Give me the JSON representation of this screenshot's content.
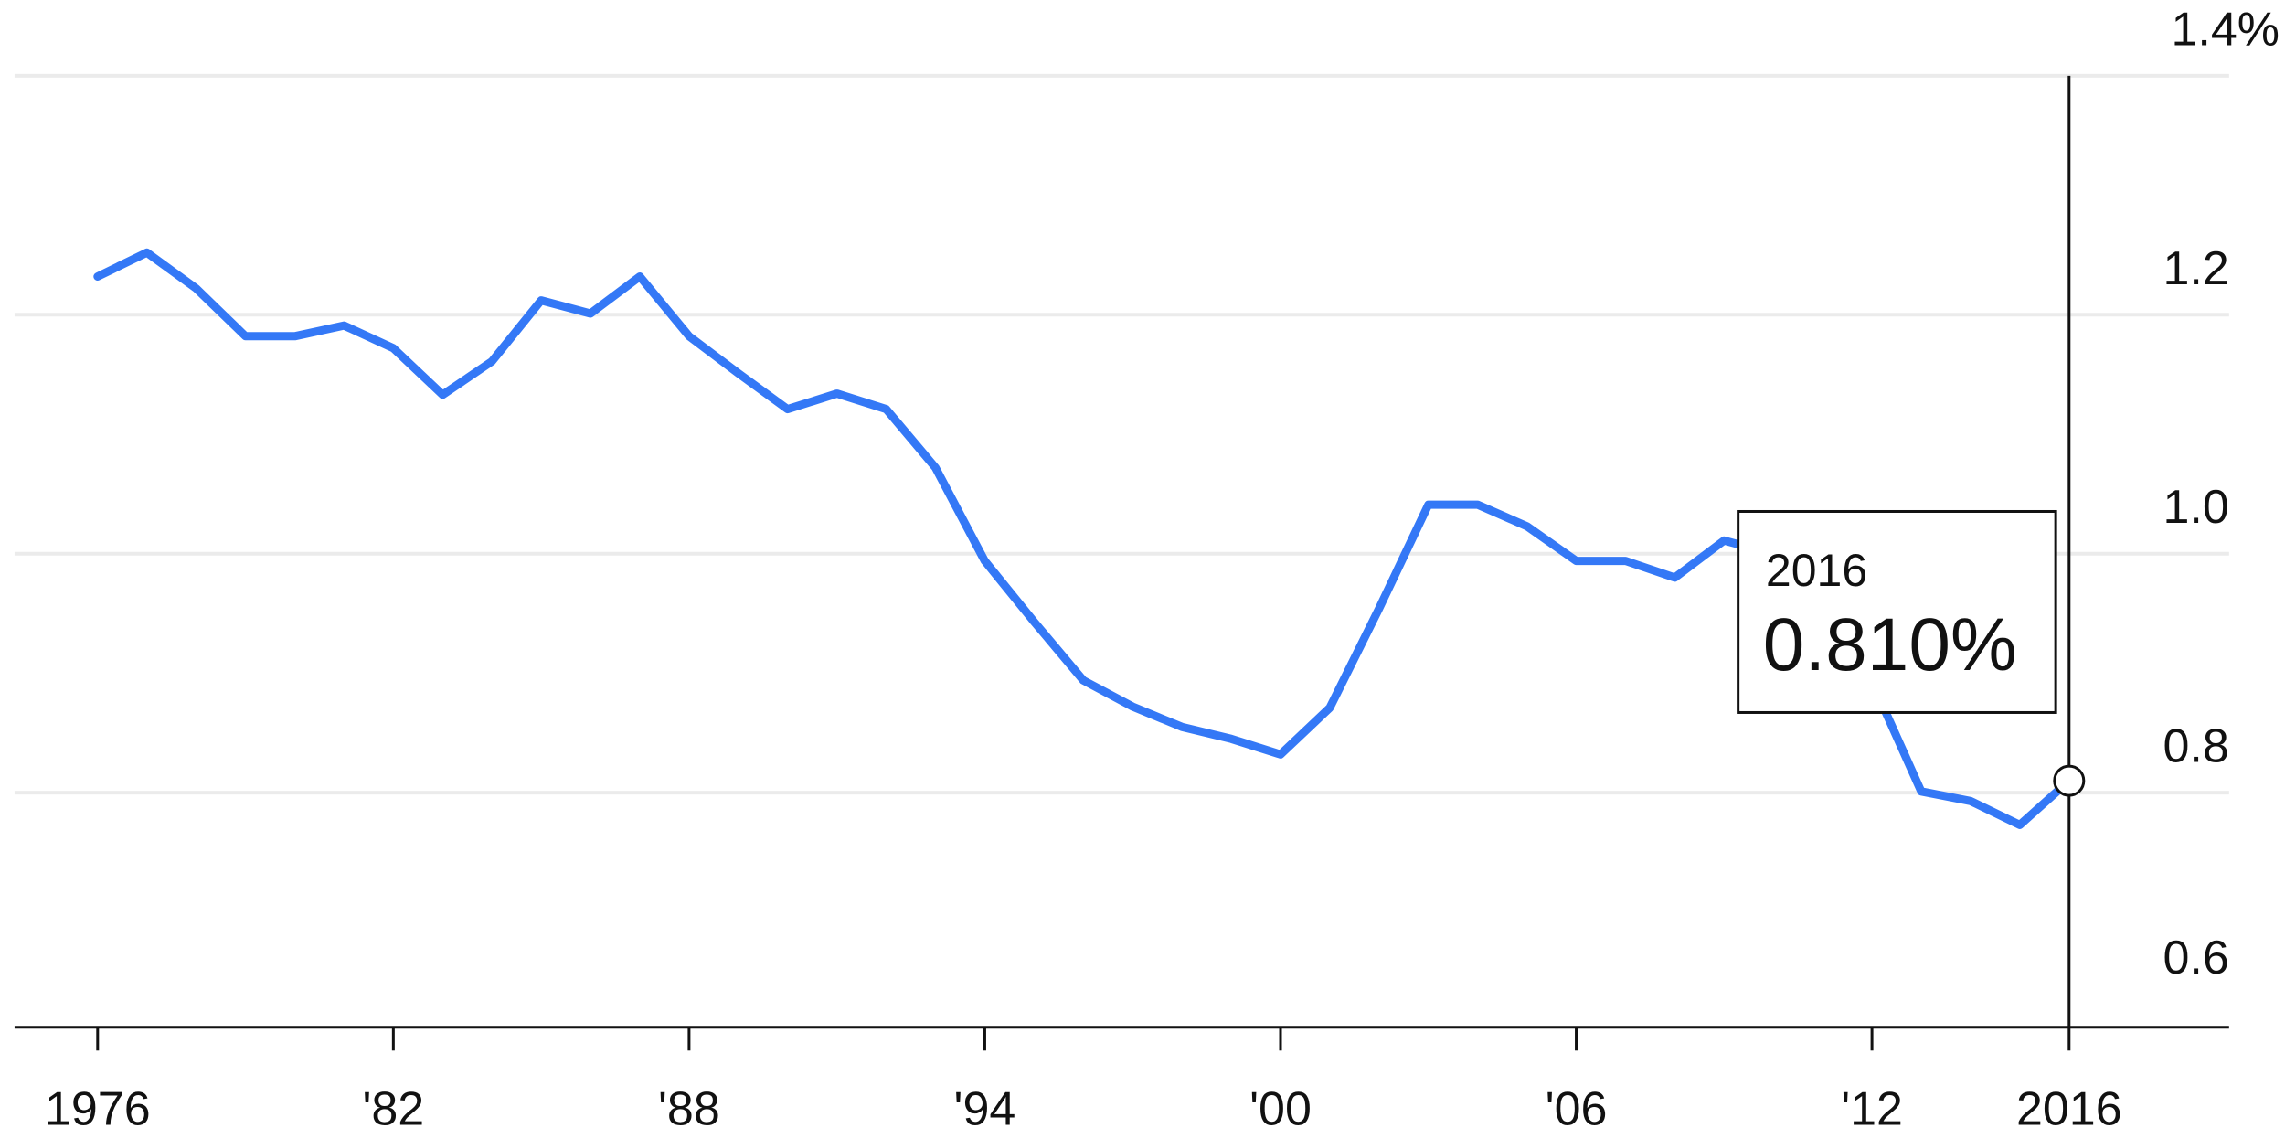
{
  "chart_data": {
    "type": "line",
    "title": "",
    "xlabel": "",
    "ylabel": "",
    "x": [
      1976,
      1977,
      1978,
      1979,
      1980,
      1981,
      1982,
      1983,
      1984,
      1985,
      1986,
      1987,
      1988,
      1989,
      1990,
      1991,
      1992,
      1993,
      1994,
      1995,
      1996,
      1997,
      1998,
      1999,
      2000,
      2001,
      2002,
      2003,
      2004,
      2005,
      2006,
      2007,
      2008,
      2009,
      2010,
      2011,
      2012,
      2013,
      2014,
      2015,
      2016
    ],
    "series": [
      {
        "values": [
          1.232,
          1.252,
          1.222,
          1.182,
          1.182,
          1.191,
          1.172,
          1.133,
          1.161,
          1.212,
          1.201,
          1.232,
          1.182,
          1.151,
          1.121,
          1.134,
          1.121,
          1.072,
          0.994,
          0.943,
          0.894,
          0.872,
          0.855,
          0.845,
          0.832,
          0.871,
          0.954,
          1.041,
          1.041,
          1.023,
          0.994,
          0.994,
          0.98,
          1.011,
          1.0,
          0.96,
          0.893,
          0.801,
          0.793,
          0.773,
          0.81
        ],
        "color": "#3478f6"
      }
    ],
    "xlim": [
      1976,
      2016
    ],
    "ylim": [
      0.6,
      1.4
    ],
    "x_ticks": [
      1976,
      1982,
      1988,
      1994,
      2000,
      2006,
      2012,
      2016
    ],
    "x_tick_labels": [
      "1976",
      "'82",
      "'88",
      "'94",
      "'00",
      "'06",
      "'12",
      "2016"
    ],
    "y_ticks": [
      0.6,
      0.8,
      1.0,
      1.2,
      1.4
    ],
    "y_tick_labels": [
      "0.6",
      "0.8",
      "1.0",
      "1.2",
      "1.4%"
    ],
    "y_axis_side": "right",
    "grid": "horizontal",
    "gridline_color": "#ebebeb",
    "highlight": {
      "x": 2016,
      "year_label": "2016",
      "value_label": "0.810%"
    }
  }
}
